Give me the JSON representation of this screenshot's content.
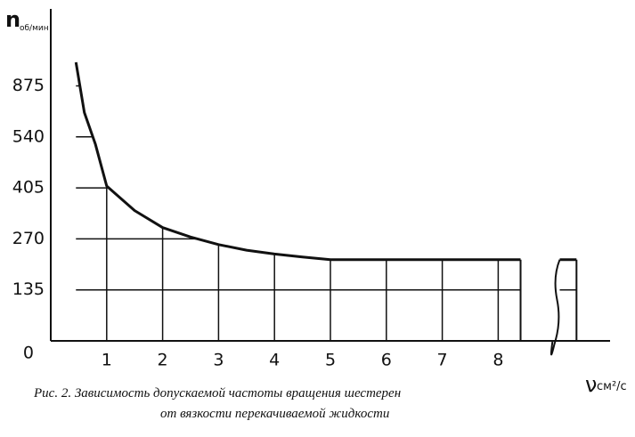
{
  "chart_data": {
    "type": "line",
    "y_label": "n",
    "y_label_unit": "об/мин",
    "x_label": "ν",
    "x_label_unit": "см²/с",
    "caption": [
      "Рис. 2. Зависимость допускаемой частоты вращения шестерен",
      "от вязкости перекачиваемой жидкости"
    ],
    "x": [
      0.45,
      0.6,
      0.8,
      1,
      1.5,
      2,
      2.5,
      3,
      3.5,
      4,
      4.5,
      5,
      6,
      7,
      8,
      8.4,
      8.7,
      9.1,
      9.4
    ],
    "series": [
      {
        "color": "#111111",
        "values": [
          1030,
          700,
          520,
          410,
          345,
          300,
          275,
          255,
          240,
          230,
          222,
          215,
          215,
          215,
          215,
          215,
          null,
          215,
          215
        ]
      }
    ],
    "xlim": [
      0,
      10
    ],
    "xticks": [
      1,
      2,
      3,
      4,
      5,
      6,
      7,
      8
    ],
    "yticks": [
      0,
      135,
      270,
      405,
      540,
      875
    ],
    "grid": true
  }
}
